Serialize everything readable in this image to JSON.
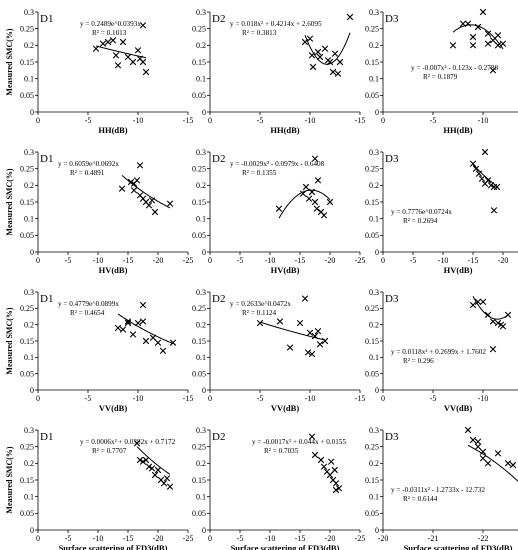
{
  "chart_data": [
    {
      "type": "scatter",
      "panel_label": "D1",
      "xlabel": "HH(dB)",
      "ylabel": "Measured SMC(%)",
      "xlim": [
        0,
        -15
      ],
      "ylim": [
        0,
        0.3
      ],
      "xticks": [
        "0",
        "-5",
        "-10",
        "-15"
      ],
      "yticks": [
        "0",
        "0.05",
        "0.1",
        "0.15",
        "0.2",
        "0.25",
        "0.3"
      ],
      "fit": {
        "kind": "power",
        "a": 0.2489,
        "b": 0.0393
      },
      "equation": "y = 0.2489e^0.0393x",
      "r2": "R² = 0.1013",
      "eq_pos": "top-right",
      "points": [
        {
          "x": -5.8,
          "y": 0.19
        },
        {
          "x": -6.5,
          "y": 0.205
        },
        {
          "x": -7.0,
          "y": 0.21
        },
        {
          "x": -7.5,
          "y": 0.215
        },
        {
          "x": -7.8,
          "y": 0.17
        },
        {
          "x": -8.0,
          "y": 0.14
        },
        {
          "x": -8.5,
          "y": 0.21
        },
        {
          "x": -9.0,
          "y": 0.165
        },
        {
          "x": -9.5,
          "y": 0.15
        },
        {
          "x": -10.0,
          "y": 0.185
        },
        {
          "x": -10.2,
          "y": 0.16
        },
        {
          "x": -10.5,
          "y": 0.15
        },
        {
          "x": -10.8,
          "y": 0.12
        },
        {
          "x": -10.5,
          "y": 0.26
        }
      ]
    },
    {
      "type": "scatter",
      "panel_label": "D2",
      "xlabel": "HH(dB)",
      "ylabel": "",
      "xlim": [
        0,
        -15
      ],
      "ylim": [
        0,
        0.3
      ],
      "xticks": [
        "0",
        "-5",
        "-10",
        "-15"
      ],
      "yticks": [
        "0",
        "0.05",
        "0.1",
        "0.15",
        "0.2",
        "0.25",
        "0.3"
      ],
      "fit": {
        "kind": "poly2",
        "a": 0.018,
        "b": 0.4214,
        "c": 2.6095
      },
      "equation": "y = 0.018x² + 0.4214x + 2.6095",
      "r2": "R² = 0.3813",
      "eq_pos": "top-left",
      "points": [
        {
          "x": -9.5,
          "y": 0.21
        },
        {
          "x": -10.0,
          "y": 0.22
        },
        {
          "x": -10.2,
          "y": 0.17
        },
        {
          "x": -10.3,
          "y": 0.135
        },
        {
          "x": -10.8,
          "y": 0.18
        },
        {
          "x": -11.0,
          "y": 0.165
        },
        {
          "x": -11.5,
          "y": 0.19
        },
        {
          "x": -11.8,
          "y": 0.155
        },
        {
          "x": -12.0,
          "y": 0.15
        },
        {
          "x": -12.3,
          "y": 0.12
        },
        {
          "x": -12.5,
          "y": 0.175
        },
        {
          "x": -12.8,
          "y": 0.115
        },
        {
          "x": -13.0,
          "y": 0.15
        },
        {
          "x": -14.0,
          "y": 0.285
        }
      ]
    },
    {
      "type": "scatter",
      "panel_label": "D3",
      "xlabel": "HH(dB)",
      "ylabel": "",
      "xlim": [
        0,
        -15
      ],
      "ylim": [
        0,
        0.3
      ],
      "xticks": [
        "0",
        "-5",
        "-10",
        "-15"
      ],
      "yticks": [
        "0",
        "0.05",
        "0.1",
        "0.15",
        "0.2",
        "0.25",
        "0.3"
      ],
      "fit": {
        "kind": "poly2",
        "a": -0.007,
        "b": -0.123,
        "c": -0.2788
      },
      "equation": "y = -0.007x² - 0.123x - 0.2788",
      "r2": "R² = 0.1879",
      "eq_pos": "bottom-right",
      "points": [
        {
          "x": -7.0,
          "y": 0.2
        },
        {
          "x": -8.0,
          "y": 0.265
        },
        {
          "x": -8.5,
          "y": 0.265
        },
        {
          "x": -9.0,
          "y": 0.225
        },
        {
          "x": -9.0,
          "y": 0.2
        },
        {
          "x": -9.5,
          "y": 0.255
        },
        {
          "x": -10.0,
          "y": 0.3
        },
        {
          "x": -10.5,
          "y": 0.235
        },
        {
          "x": -10.5,
          "y": 0.205
        },
        {
          "x": -11.0,
          "y": 0.215
        },
        {
          "x": -11.0,
          "y": 0.125
        },
        {
          "x": -11.5,
          "y": 0.23
        },
        {
          "x": -11.5,
          "y": 0.2
        },
        {
          "x": -12.0,
          "y": 0.205
        }
      ]
    },
    {
      "type": "scatter",
      "panel_label": "D1",
      "xlabel": "HV(dB)",
      "ylabel": "Measured SMC(%)",
      "xlim": [
        0,
        -25
      ],
      "ylim": [
        0,
        0.3
      ],
      "xticks": [
        "0",
        "-5",
        "-10",
        "-15",
        "-20",
        "-25"
      ],
      "yticks": [
        "0",
        "0.05",
        "0.1",
        "0.15",
        "0.2",
        "0.25",
        "0.3"
      ],
      "fit": {
        "kind": "power",
        "a": 0.6059,
        "b": 0.0692
      },
      "equation": "y = 0.6059e^0.0692x",
      "r2": "R² = 0.4891",
      "eq_pos": "top-left",
      "points": [
        {
          "x": -14.0,
          "y": 0.19
        },
        {
          "x": -15.5,
          "y": 0.21
        },
        {
          "x": -16.0,
          "y": 0.205
        },
        {
          "x": -16.5,
          "y": 0.215
        },
        {
          "x": -16.0,
          "y": 0.185
        },
        {
          "x": -17.0,
          "y": 0.26
        },
        {
          "x": -17.0,
          "y": 0.17
        },
        {
          "x": -17.5,
          "y": 0.16
        },
        {
          "x": -18.0,
          "y": 0.15
        },
        {
          "x": -18.5,
          "y": 0.14
        },
        {
          "x": -19.0,
          "y": 0.155
        },
        {
          "x": -19.5,
          "y": 0.12
        },
        {
          "x": -22.0,
          "y": 0.145
        }
      ]
    },
    {
      "type": "scatter",
      "panel_label": "D2",
      "xlabel": "HV(dB)",
      "ylabel": "",
      "xlim": [
        0,
        -25
      ],
      "ylim": [
        0,
        0.3
      ],
      "xticks": [
        "0",
        "-5",
        "-10",
        "-15",
        "-20",
        "-25"
      ],
      "yticks": [
        "0",
        "0.05",
        "0.1",
        "0.15",
        "0.2",
        "0.25",
        "0.3"
      ],
      "fit": {
        "kind": "poly2",
        "a": -0.0029,
        "b": -0.0979,
        "c": -0.6408
      },
      "equation": "y = -0.0029x² - 0.0979x - 0.6408",
      "r2": "R² = 0.1355",
      "eq_pos": "top-left",
      "points": [
        {
          "x": -11.5,
          "y": 0.13
        },
        {
          "x": -15.5,
          "y": 0.175
        },
        {
          "x": -16.0,
          "y": 0.195
        },
        {
          "x": -16.5,
          "y": 0.16
        },
        {
          "x": -17.0,
          "y": 0.18
        },
        {
          "x": -17.5,
          "y": 0.28
        },
        {
          "x": -17.5,
          "y": 0.15
        },
        {
          "x": -17.8,
          "y": 0.13
        },
        {
          "x": -18.0,
          "y": 0.215
        },
        {
          "x": -18.5,
          "y": 0.12
        },
        {
          "x": -19.0,
          "y": 0.11
        },
        {
          "x": -20.0,
          "y": 0.15
        }
      ]
    },
    {
      "type": "scatter",
      "panel_label": "D3",
      "xlabel": "HV(dB)",
      "ylabel": "",
      "xlim": [
        0,
        -25
      ],
      "ylim": [
        0,
        0.3
      ],
      "xticks": [
        "0",
        "-5",
        "-10",
        "-15",
        "-20",
        "-25"
      ],
      "yticks": [
        "0",
        "0.05",
        "0.1",
        "0.15",
        "0.2",
        "0.25",
        "0.3"
      ],
      "fit": {
        "kind": "power",
        "a": 0.7776,
        "b": 0.0724
      },
      "equation": "y = 0.7776e^0.0724x",
      "r2": "R² = 0.2694",
      "eq_pos": "bottom-left",
      "points": [
        {
          "x": -15.0,
          "y": 0.265
        },
        {
          "x": -15.5,
          "y": 0.25
        },
        {
          "x": -16.0,
          "y": 0.235
        },
        {
          "x": -16.5,
          "y": 0.22
        },
        {
          "x": -17.0,
          "y": 0.3
        },
        {
          "x": -17.0,
          "y": 0.205
        },
        {
          "x": -17.5,
          "y": 0.215
        },
        {
          "x": -18.0,
          "y": 0.2
        },
        {
          "x": -18.5,
          "y": 0.195
        },
        {
          "x": -18.5,
          "y": 0.125
        },
        {
          "x": -19.0,
          "y": 0.195
        }
      ]
    },
    {
      "type": "scatter",
      "panel_label": "D1",
      "xlabel": "VV(dB)",
      "ylabel": "Measured SMC(%)",
      "xlim": [
        0,
        -15
      ],
      "ylim": [
        0,
        0.3
      ],
      "xticks": [
        "0",
        "-5",
        "-10",
        "-15"
      ],
      "yticks": [
        "0",
        "0.05",
        "0.1",
        "0.15",
        "0.2",
        "0.25",
        "0.3"
      ],
      "fit": {
        "kind": "power",
        "a": 0.4779,
        "b": 0.0899
      },
      "equation": "y = 0.4779e^0.0899x",
      "r2": "R² = 0.4654",
      "eq_pos": "top-left",
      "points": [
        {
          "x": -8.0,
          "y": 0.19
        },
        {
          "x": -8.5,
          "y": 0.185
        },
        {
          "x": -9.0,
          "y": 0.205
        },
        {
          "x": -9.0,
          "y": 0.21
        },
        {
          "x": -9.5,
          "y": 0.17
        },
        {
          "x": -10.0,
          "y": 0.205
        },
        {
          "x": -10.5,
          "y": 0.26
        },
        {
          "x": -10.5,
          "y": 0.21
        },
        {
          "x": -10.8,
          "y": 0.15
        },
        {
          "x": -11.5,
          "y": 0.16
        },
        {
          "x": -12.0,
          "y": 0.145
        },
        {
          "x": -12.5,
          "y": 0.12
        },
        {
          "x": -13.5,
          "y": 0.145
        }
      ]
    },
    {
      "type": "scatter",
      "panel_label": "D2",
      "xlabel": "VV(dB)",
      "ylabel": "",
      "xlim": [
        0,
        -15
      ],
      "ylim": [
        0,
        0.3
      ],
      "xticks": [
        "0",
        "-5",
        "-10",
        "-15"
      ],
      "yticks": [
        "0",
        "0.05",
        "0.1",
        "0.15",
        "0.2",
        "0.25",
        "0.3"
      ],
      "fit": {
        "kind": "power",
        "a": 0.2633,
        "b": 0.0472
      },
      "equation": "y = 0.2633e^0.0472x",
      "r2": "R² = 0.1124",
      "eq_pos": "top-left",
      "points": [
        {
          "x": -5.0,
          "y": 0.205
        },
        {
          "x": -7.0,
          "y": 0.21
        },
        {
          "x": -8.0,
          "y": 0.13
        },
        {
          "x": -9.0,
          "y": 0.205
        },
        {
          "x": -9.5,
          "y": 0.28
        },
        {
          "x": -9.8,
          "y": 0.115
        },
        {
          "x": -10.0,
          "y": 0.175
        },
        {
          "x": -10.2,
          "y": 0.11
        },
        {
          "x": -10.5,
          "y": 0.165
        },
        {
          "x": -10.8,
          "y": 0.18
        },
        {
          "x": -11.0,
          "y": 0.14
        },
        {
          "x": -11.5,
          "y": 0.15
        }
      ]
    },
    {
      "type": "scatter",
      "panel_label": "D3",
      "xlabel": "VV(dB)",
      "ylabel": "",
      "xlim": [
        0,
        -15
      ],
      "ylim": [
        0,
        0.3
      ],
      "xticks": [
        "0",
        "-5",
        "-10",
        "-15"
      ],
      "yticks": [
        "0",
        "0.05",
        "0.1",
        "0.15",
        "0.2",
        "0.25",
        "0.3"
      ],
      "fit": {
        "kind": "poly2",
        "a": 0.0118,
        "b": 0.2699,
        "c": 1.7602
      },
      "equation": "y = 0.0118x² + 0.2699x + 1.7602",
      "r2": "R² = 0.296",
      "eq_pos": "bottom-left",
      "points": [
        {
          "x": -9.0,
          "y": 0.26
        },
        {
          "x": -9.5,
          "y": 0.27
        },
        {
          "x": -10.0,
          "y": 0.27
        },
        {
          "x": -10.5,
          "y": 0.23
        },
        {
          "x": -11.0,
          "y": 0.21
        },
        {
          "x": -11.0,
          "y": 0.125
        },
        {
          "x": -11.5,
          "y": 0.205
        },
        {
          "x": -11.8,
          "y": 0.2
        },
        {
          "x": -12.0,
          "y": 0.195
        },
        {
          "x": -12.5,
          "y": 0.23
        }
      ]
    },
    {
      "type": "scatter",
      "panel_label": "D1",
      "xlabel": "Surface scattering of FD3(dB)",
      "ylabel": "Measured SMC(%)",
      "xlim": [
        0,
        -25
      ],
      "ylim": [
        0,
        0.3
      ],
      "xticks": [
        "0",
        "-5",
        "-10",
        "-15",
        "-20",
        "-25"
      ],
      "yticks": [
        "0",
        "0.05",
        "0.1",
        "0.15",
        "0.2",
        "0.25",
        "0.3"
      ],
      "fit": {
        "kind": "poly2",
        "a": 0.0006,
        "b": 0.0382,
        "c": 0.7172
      },
      "equation": "y = 0.0006x² + 0.0382x + 0.7172",
      "r2": "R² = 0.7707",
      "eq_pos": "top-right",
      "points": [
        {
          "x": -16.5,
          "y": 0.26
        },
        {
          "x": -17.0,
          "y": 0.21
        },
        {
          "x": -17.5,
          "y": 0.205
        },
        {
          "x": -18.0,
          "y": 0.21
        },
        {
          "x": -18.5,
          "y": 0.19
        },
        {
          "x": -19.0,
          "y": 0.185
        },
        {
          "x": -19.5,
          "y": 0.165
        },
        {
          "x": -20.0,
          "y": 0.18
        },
        {
          "x": -20.5,
          "y": 0.15
        },
        {
          "x": -21.0,
          "y": 0.14
        },
        {
          "x": -21.5,
          "y": 0.155
        },
        {
          "x": -22.0,
          "y": 0.13
        }
      ]
    },
    {
      "type": "scatter",
      "panel_label": "D2",
      "xlabel": "Surface scattering of FD3(dB)",
      "ylabel": "",
      "xlim": [
        0,
        -25
      ],
      "ylim": [
        0,
        0.3
      ],
      "xticks": [
        "0",
        "-5",
        "-10",
        "-15",
        "-20",
        "-25"
      ],
      "yticks": [
        "0",
        "0.05",
        "0.1",
        "0.15",
        "0.2",
        "0.25",
        "0.3"
      ],
      "fit": {
        "kind": "poly2",
        "a": -0.0017,
        "b": 0.044,
        "c": 0.0155
      },
      "equation": "y = -0.0017x² + 0.044x + 0.0155",
      "r2": "R² = 0.7035",
      "eq_pos": "top-right",
      "points": [
        {
          "x": -17.0,
          "y": 0.28
        },
        {
          "x": -17.5,
          "y": 0.225
        },
        {
          "x": -18.5,
          "y": 0.21
        },
        {
          "x": -19.0,
          "y": 0.19
        },
        {
          "x": -19.5,
          "y": 0.175
        },
        {
          "x": -20.0,
          "y": 0.165
        },
        {
          "x": -20.2,
          "y": 0.205
        },
        {
          "x": -20.5,
          "y": 0.15
        },
        {
          "x": -20.8,
          "y": 0.18
        },
        {
          "x": -21.0,
          "y": 0.14
        },
        {
          "x": -21.0,
          "y": 0.12
        },
        {
          "x": -21.5,
          "y": 0.125
        }
      ]
    },
    {
      "type": "scatter",
      "panel_label": "D3",
      "xlabel": "Surface scattering of FD3(dB)",
      "ylabel": "",
      "xlim": [
        -20,
        -23
      ],
      "ylim": [
        0,
        0.3
      ],
      "xticks": [
        "-20",
        "-21",
        "-22",
        "-23"
      ],
      "yticks": [
        "0",
        "0.05",
        "0.1",
        "0.15",
        "0.2",
        "0.25",
        "0.3"
      ],
      "fit": {
        "kind": "poly2",
        "a": -0.0311,
        "b": -1.2733,
        "c": -12.732
      },
      "equation": "y = -0.0311x² - 1.2733x - 12.732",
      "r2": "R² = 0.6144",
      "eq_pos": "bottom-left",
      "points": [
        {
          "x": -21.7,
          "y": 0.3
        },
        {
          "x": -21.8,
          "y": 0.27
        },
        {
          "x": -21.9,
          "y": 0.265
        },
        {
          "x": -21.9,
          "y": 0.25
        },
        {
          "x": -22.0,
          "y": 0.235
        },
        {
          "x": -22.0,
          "y": 0.215
        },
        {
          "x": -22.1,
          "y": 0.2
        },
        {
          "x": -22.3,
          "y": 0.23
        },
        {
          "x": -22.5,
          "y": 0.2
        },
        {
          "x": -22.6,
          "y": 0.195
        },
        {
          "x": -22.8,
          "y": 0.185
        },
        {
          "x": -22.9,
          "y": 0.125
        }
      ]
    }
  ]
}
